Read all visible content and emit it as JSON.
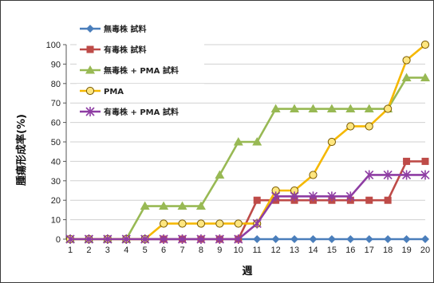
{
  "chart_data": {
    "type": "line",
    "xlabel": "週",
    "ylabel": "腫瘍形成率(%)",
    "x": [
      1,
      2,
      3,
      4,
      5,
      6,
      7,
      8,
      9,
      10,
      11,
      12,
      13,
      14,
      15,
      16,
      17,
      18,
      19,
      20
    ],
    "ylim": [
      0,
      100
    ],
    "yticks": [
      0,
      10,
      20,
      30,
      40,
      50,
      60,
      70,
      80,
      90,
      100
    ],
    "step_lines": true,
    "legend_position": "top-left (inside plot)",
    "series": [
      {
        "name": "無毒株 試料",
        "color": "#4a7ebb",
        "marker": "diamond",
        "values": [
          0,
          0,
          0,
          0,
          0,
          0,
          0,
          0,
          0,
          0,
          0,
          0,
          0,
          0,
          0,
          0,
          0,
          0,
          0,
          0
        ]
      },
      {
        "name": "有毒株 試料",
        "color": "#be4b48",
        "marker": "square",
        "values": [
          0,
          0,
          0,
          0,
          0,
          0,
          0,
          0,
          0,
          0,
          20,
          20,
          20,
          20,
          20,
          20,
          20,
          20,
          40,
          40
        ]
      },
      {
        "name": "無毒株 + PMA 試料",
        "color": "#98b954",
        "marker": "triangle",
        "values": [
          0,
          0,
          0,
          0,
          17,
          17,
          17,
          17,
          33,
          50,
          50,
          67,
          67,
          67,
          67,
          67,
          67,
          67,
          83,
          83
        ]
      },
      {
        "name": "PMA",
        "color": "#f5b800",
        "marker": "circle",
        "values": [
          0,
          0,
          0,
          0,
          0,
          8,
          8,
          8,
          8,
          8,
          8,
          25,
          25,
          33,
          50,
          58,
          58,
          67,
          92,
          100
        ]
      },
      {
        "name": "有毒株 + PMA 試料",
        "color": "#8e3da3",
        "marker": "star",
        "values": [
          0,
          0,
          0,
          0,
          0,
          0,
          0,
          0,
          0,
          0,
          8,
          22,
          22,
          22,
          22,
          22,
          33,
          33,
          33,
          33
        ]
      }
    ]
  }
}
